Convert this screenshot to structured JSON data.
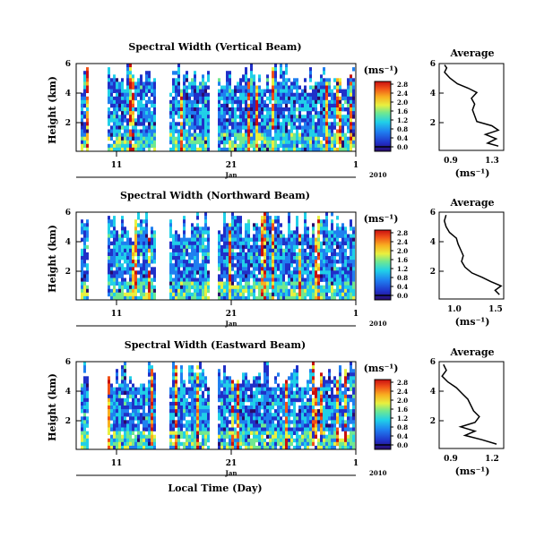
{
  "figure": {
    "xlabel": "Local Time (Day)",
    "month_label": "Jan",
    "year_label": "2010",
    "colorbar_unit": "(ms⁻¹)"
  },
  "chart_data": [
    {
      "type": "heatmap",
      "title": "Spectral Width (Vertical Beam)",
      "ylabel": "Height (km)",
      "x_ticks": [
        "11",
        "21",
        "1"
      ],
      "y_ticks": [
        "6",
        "4",
        "2"
      ],
      "ylim": [
        0,
        6
      ],
      "colorbar": {
        "ticks": [
          "2.8",
          "2.4",
          "2.0",
          "1.6",
          "1.2",
          "0.8",
          "0.4",
          "0.0"
        ],
        "range": [
          0.0,
          2.8
        ]
      },
      "average": {
        "title": "Average",
        "xlabel": "(ms⁻¹)",
        "x_ticks": [
          "0.9",
          "1.3"
        ],
        "xlim": [
          0.75,
          1.35
        ],
        "y_ticks": [
          "6",
          "4",
          "2"
        ],
        "ylim": [
          0,
          6
        ],
        "profile": [
          {
            "h": 0.3,
            "v": 1.3
          },
          {
            "h": 0.5,
            "v": 1.2
          },
          {
            "h": 0.8,
            "v": 1.28
          },
          {
            "h": 1.1,
            "v": 1.18
          },
          {
            "h": 1.4,
            "v": 1.3
          },
          {
            "h": 1.7,
            "v": 1.24
          },
          {
            "h": 2.0,
            "v": 1.1
          },
          {
            "h": 2.4,
            "v": 1.08
          },
          {
            "h": 2.8,
            "v": 1.06
          },
          {
            "h": 3.2,
            "v": 1.08
          },
          {
            "h": 3.6,
            "v": 1.05
          },
          {
            "h": 4.0,
            "v": 1.1
          },
          {
            "h": 4.3,
            "v": 1.02
          },
          {
            "h": 4.6,
            "v": 0.92
          },
          {
            "h": 5.0,
            "v": 0.85
          },
          {
            "h": 5.4,
            "v": 0.8
          },
          {
            "h": 5.7,
            "v": 0.82
          },
          {
            "h": 5.9,
            "v": 0.8
          }
        ]
      }
    },
    {
      "type": "heatmap",
      "title": "Spectral Width (Northward Beam)",
      "ylabel": "Height (km)",
      "x_ticks": [
        "11",
        "21",
        "1"
      ],
      "y_ticks": [
        "6",
        "4",
        "2"
      ],
      "ylim": [
        0,
        6
      ],
      "colorbar": {
        "ticks": [
          "2.8",
          "2.4",
          "2.0",
          "1.6",
          "1.2",
          "0.8",
          "0.4",
          "0.0"
        ],
        "range": [
          0.0,
          2.8
        ]
      },
      "average": {
        "title": "Average",
        "xlabel": "(ms⁻¹)",
        "x_ticks": [
          "1.0",
          "1.5"
        ],
        "xlim": [
          0.8,
          1.55
        ],
        "y_ticks": [
          "6",
          "4",
          "2"
        ],
        "ylim": [
          0,
          6
        ],
        "profile": [
          {
            "h": 0.3,
            "v": 1.5
          },
          {
            "h": 0.6,
            "v": 1.45
          },
          {
            "h": 0.9,
            "v": 1.52
          },
          {
            "h": 1.2,
            "v": 1.4
          },
          {
            "h": 1.5,
            "v": 1.3
          },
          {
            "h": 1.8,
            "v": 1.18
          },
          {
            "h": 2.2,
            "v": 1.1
          },
          {
            "h": 2.6,
            "v": 1.06
          },
          {
            "h": 3.0,
            "v": 1.08
          },
          {
            "h": 3.4,
            "v": 1.05
          },
          {
            "h": 3.8,
            "v": 1.02
          },
          {
            "h": 4.2,
            "v": 1.0
          },
          {
            "h": 4.6,
            "v": 0.92
          },
          {
            "h": 5.0,
            "v": 0.88
          },
          {
            "h": 5.4,
            "v": 0.86
          },
          {
            "h": 5.8,
            "v": 0.88
          }
        ]
      }
    },
    {
      "type": "heatmap",
      "title": "Spectral Width (Eastward Beam)",
      "ylabel": "Height (km)",
      "x_ticks": [
        "11",
        "21",
        "1"
      ],
      "y_ticks": [
        "6",
        "4",
        "2"
      ],
      "ylim": [
        0,
        6
      ],
      "colorbar": {
        "ticks": [
          "2.8",
          "2.4",
          "2.0",
          "1.6",
          "1.2",
          "0.8",
          "0.4",
          "0.0"
        ],
        "range": [
          0.0,
          2.8
        ]
      },
      "average": {
        "title": "Average",
        "xlabel": "(ms⁻¹)",
        "x_ticks": [
          "0.9",
          "1.2"
        ],
        "xlim": [
          0.8,
          1.25
        ],
        "y_ticks": [
          "6",
          "4",
          "2"
        ],
        "ylim": [
          0,
          6
        ],
        "profile": [
          {
            "h": 0.3,
            "v": 1.2
          },
          {
            "h": 0.6,
            "v": 1.1
          },
          {
            "h": 0.9,
            "v": 0.98
          },
          {
            "h": 1.2,
            "v": 1.05
          },
          {
            "h": 1.5,
            "v": 0.95
          },
          {
            "h": 1.8,
            "v": 1.05
          },
          {
            "h": 2.2,
            "v": 1.08
          },
          {
            "h": 2.6,
            "v": 1.04
          },
          {
            "h": 3.0,
            "v": 1.02
          },
          {
            "h": 3.4,
            "v": 1.0
          },
          {
            "h": 3.8,
            "v": 0.96
          },
          {
            "h": 4.2,
            "v": 0.92
          },
          {
            "h": 4.6,
            "v": 0.86
          },
          {
            "h": 5.0,
            "v": 0.82
          },
          {
            "h": 5.4,
            "v": 0.85
          },
          {
            "h": 5.8,
            "v": 0.83
          }
        ]
      }
    }
  ]
}
